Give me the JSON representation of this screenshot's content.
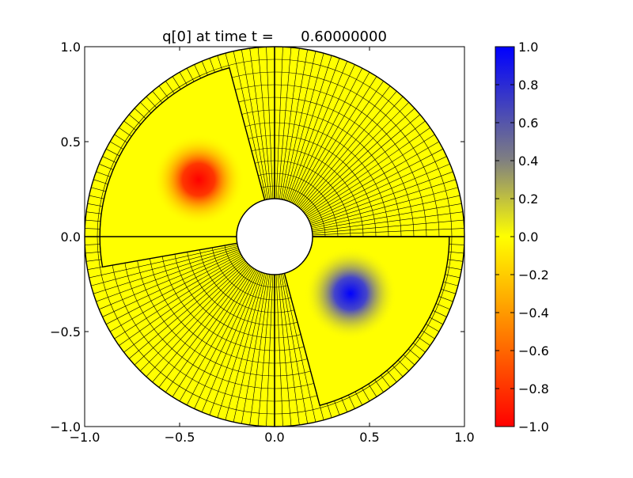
{
  "chart_data": {
    "type": "heatmap",
    "title": "q[0] at time t =      0.60000000",
    "xlabel": "",
    "ylabel": "",
    "xlim": [
      -1.0,
      1.0
    ],
    "ylim": [
      -1.0,
      1.0
    ],
    "grid": false,
    "x_ticks": [
      {
        "value": -1.0,
        "label": "−1.0"
      },
      {
        "value": -0.5,
        "label": "−0.5"
      },
      {
        "value": 0.0,
        "label": "0.0"
      },
      {
        "value": 0.5,
        "label": "0.5"
      },
      {
        "value": 1.0,
        "label": "1.0"
      }
    ],
    "y_ticks": [
      {
        "value": 1.0,
        "label": "1.0"
      },
      {
        "value": 0.5,
        "label": "0.5"
      },
      {
        "value": 0.0,
        "label": "0.0"
      },
      {
        "value": -0.5,
        "label": "−0.5"
      },
      {
        "value": -1.0,
        "label": "−1.0"
      }
    ],
    "annulus": {
      "inner_radius": 0.2,
      "outer_radius": 1.0
    },
    "patch_boundaries": [
      {
        "type": "radial",
        "angle_deg": 0
      },
      {
        "type": "radial",
        "angle_deg": 90
      },
      {
        "type": "radial",
        "angle_deg": 180
      },
      {
        "type": "radial",
        "angle_deg": 270
      }
    ],
    "refined_patches": [
      {
        "r_min": 0.2,
        "r_max": 0.92,
        "theta_min_deg": 105,
        "theta_max_deg": 190
      },
      {
        "r_min": 0.2,
        "r_max": 0.92,
        "theta_min_deg": 285,
        "theta_max_deg": 360
      }
    ],
    "mesh_lines": {
      "coarse_radial": 12,
      "coarse_angular": 144
    },
    "features": [
      {
        "name": "negative blob",
        "x": -0.4,
        "y": 0.3,
        "peak": -1.0,
        "sigma": 0.11
      },
      {
        "name": "positive blob",
        "x": 0.4,
        "y": -0.3,
        "peak": 1.0,
        "sigma": 0.11
      }
    ],
    "colorbar": {
      "min": -1.0,
      "max": 1.0,
      "ticks": [
        {
          "value": 1.0,
          "label": "1.0"
        },
        {
          "value": 0.8,
          "label": "0.8"
        },
        {
          "value": 0.6,
          "label": "0.6"
        },
        {
          "value": 0.4,
          "label": "0.4"
        },
        {
          "value": 0.2,
          "label": "0.2"
        },
        {
          "value": 0.0,
          "label": "0.0"
        },
        {
          "value": -0.2,
          "label": "−0.2"
        },
        {
          "value": -0.4,
          "label": "−0.4"
        },
        {
          "value": -0.6,
          "label": "−0.6"
        },
        {
          "value": -0.8,
          "label": "−0.8"
        },
        {
          "value": -1.0,
          "label": "−1.0"
        }
      ],
      "colors": [
        {
          "value": -1.0,
          "color": "#ff0000"
        },
        {
          "value": -0.5,
          "color": "#ff8000"
        },
        {
          "value": 0.0,
          "color": "#ffff00"
        },
        {
          "value": 0.4,
          "color": "#808080"
        },
        {
          "value": 1.0,
          "color": "#0000ff"
        }
      ]
    }
  }
}
